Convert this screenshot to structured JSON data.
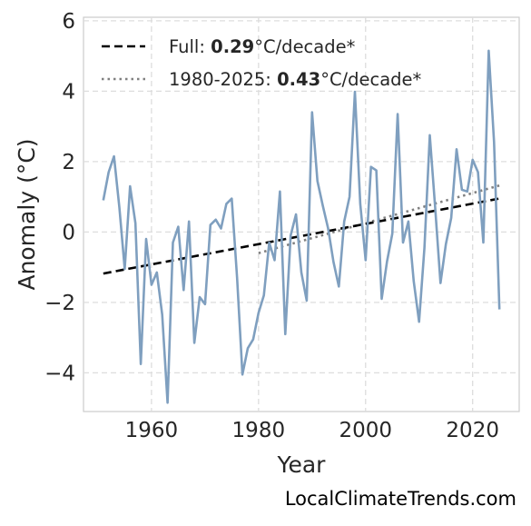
{
  "chart_data": {
    "type": "line",
    "xlabel": "Year",
    "ylabel": "Anomaly (°C)",
    "xlim": [
      1947.3,
      2028.7
    ],
    "ylim": [
      -5.1,
      6.1
    ],
    "x_ticks": [
      1960,
      1980,
      2000,
      2020
    ],
    "y_ticks": [
      -4,
      -2,
      0,
      2,
      4,
      6
    ],
    "grid": true,
    "legend_position": "top-left",
    "colors": {
      "series": "#7f9fbf",
      "full_trend": "#000000",
      "recent_trend": "#808080"
    },
    "series": [
      {
        "x": [
          1951,
          1952,
          1953,
          1954,
          1955,
          1956,
          1957,
          1958,
          1959,
          1960,
          1961,
          1962,
          1963,
          1964,
          1965,
          1966,
          1967,
          1968,
          1969,
          1970,
          1971,
          1972,
          1973,
          1974,
          1975,
          1976,
          1977,
          1978,
          1979,
          1980,
          1981,
          1982,
          1983,
          1984,
          1985,
          1986,
          1987,
          1988,
          1989,
          1990,
          1991,
          1992,
          1993,
          1994,
          1995,
          1996,
          1997,
          1998,
          1999,
          2000,
          2001,
          2002,
          2003,
          2004,
          2005,
          2006,
          2007,
          2008,
          2009,
          2010,
          2011,
          2012,
          2013,
          2014,
          2015,
          2016,
          2017,
          2018,
          2019,
          2020,
          2021,
          2022,
          2023,
          2024,
          2025
        ],
        "values": [
          0.9,
          1.7,
          2.15,
          0.7,
          -1.05,
          1.3,
          0.25,
          -3.75,
          -0.2,
          -1.5,
          -1.15,
          -2.35,
          -4.85,
          -0.3,
          0.15,
          -1.65,
          0.3,
          -3.15,
          -1.85,
          -2.05,
          0.2,
          0.35,
          0.1,
          0.8,
          0.95,
          -1.3,
          -4.05,
          -3.3,
          -3.05,
          -2.3,
          -1.8,
          -0.3,
          -0.8,
          1.15,
          -2.9,
          -0.1,
          0.5,
          -1.15,
          -1.95,
          3.4,
          1.45,
          0.75,
          0.1,
          -0.85,
          -1.55,
          0.3,
          1.0,
          3.98,
          0.8,
          -0.8,
          1.85,
          1.75,
          -1.9,
          -0.85,
          -0.05,
          3.35,
          -0.3,
          0.3,
          -1.4,
          -2.55,
          -0.45,
          2.75,
          0.7,
          -1.45,
          -0.35,
          0.4,
          2.35,
          1.2,
          1.15,
          2.05,
          1.7,
          -0.3,
          5.15,
          2.55,
          -2.2
        ]
      }
    ],
    "trend_lines": [
      {
        "name_label": "Full: ",
        "value": "0.29",
        "unit": "°C/decade*",
        "x": [
          1951,
          2025
        ],
        "y": [
          -1.18,
          0.95
        ]
      },
      {
        "name_label": "1980-2025: ",
        "value": "0.43",
        "unit": "°C/decade*",
        "x": [
          1980,
          2025
        ],
        "y": [
          -0.6,
          1.32
        ]
      }
    ]
  },
  "source_label": "LocalClimateTrends.com"
}
